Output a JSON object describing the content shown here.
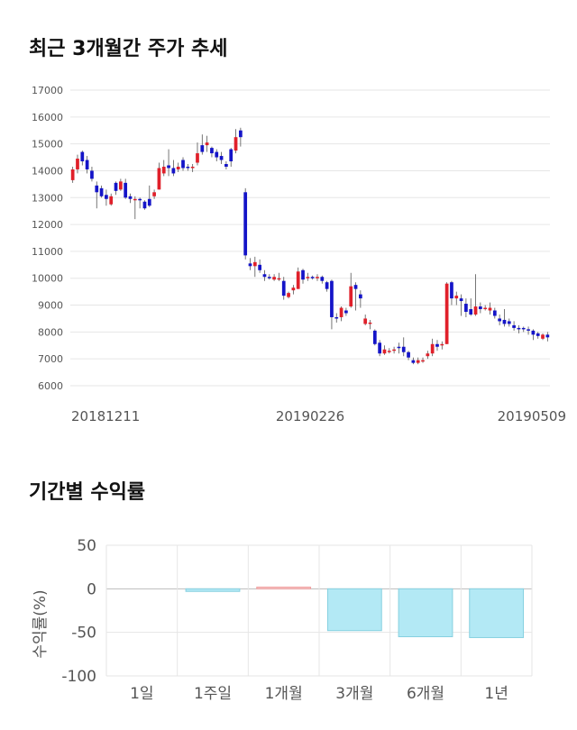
{
  "sections": {
    "price_title": "최근 3개월간 주가 추세",
    "returns_title": "기간별 수익률"
  },
  "colors": {
    "up": "#e0202a",
    "down": "#1414c8",
    "grid": "#e6e6e6",
    "bar_fill": "#b3e9f5",
    "bar_stroke": "#86d0e0",
    "bar_pos_fill": "#f7c6c6"
  },
  "chart_data": [
    {
      "type": "candlestick",
      "title": "최근 3개월간 주가 추세",
      "ylim": [
        6000,
        17000
      ],
      "yticks": [
        "6000",
        "7000",
        "8000",
        "9000",
        "10000",
        "11000",
        "12000",
        "13000",
        "14000",
        "15000",
        "16000",
        "17000"
      ],
      "xlabels": [
        "20181211",
        "20190226",
        "20190509"
      ],
      "candles": [
        [
          13650,
          14050,
          14150,
          13550
        ],
        [
          14050,
          14450,
          14600,
          13900
        ],
        [
          14700,
          14350,
          14750,
          14200
        ],
        [
          14400,
          14050,
          14550,
          13900
        ],
        [
          14000,
          13700,
          14150,
          13600
        ],
        [
          13450,
          13200,
          13600,
          12600
        ],
        [
          13350,
          13050,
          13450,
          13000
        ],
        [
          13100,
          12950,
          13300,
          12700
        ],
        [
          12750,
          13050,
          13150,
          12700
        ],
        [
          13550,
          13250,
          13600,
          13100
        ],
        [
          13300,
          13600,
          13700,
          13250
        ],
        [
          13550,
          13000,
          13700,
          12950
        ],
        [
          13050,
          12950,
          13150,
          12800
        ],
        [
          12900,
          12950,
          13050,
          12200
        ],
        [
          12950,
          12900,
          13000,
          12600
        ],
        [
          12850,
          12600,
          12900,
          12550
        ],
        [
          12950,
          12700,
          13450,
          12650
        ],
        [
          13050,
          13200,
          13300,
          12950
        ],
        [
          13300,
          14100,
          14300,
          13300
        ],
        [
          13900,
          14150,
          14400,
          13800
        ],
        [
          14200,
          14100,
          14800,
          13800
        ],
        [
          14100,
          13900,
          14400,
          13800
        ],
        [
          14050,
          14150,
          14300,
          13950
        ],
        [
          14400,
          14100,
          14500,
          14000
        ],
        [
          14150,
          14100,
          14250,
          14000
        ],
        [
          14100,
          14150,
          14250,
          13950
        ],
        [
          14300,
          14650,
          15050,
          14200
        ],
        [
          14950,
          14700,
          15350,
          14600
        ],
        [
          14950,
          15050,
          15300,
          14700
        ],
        [
          14850,
          14650,
          14900,
          14500
        ],
        [
          14700,
          14500,
          14800,
          14350
        ],
        [
          14550,
          14400,
          14700,
          14250
        ],
        [
          14250,
          14150,
          14350,
          14050
        ],
        [
          14800,
          14350,
          14850,
          14150
        ],
        [
          14750,
          15250,
          15550,
          14650
        ],
        [
          15500,
          15250,
          15600,
          14900
        ],
        [
          13200,
          10850,
          13350,
          10700
        ],
        [
          10550,
          10450,
          10750,
          10300
        ],
        [
          10450,
          10600,
          10800,
          10050
        ],
        [
          10500,
          10300,
          10700,
          10200
        ],
        [
          10150,
          10050,
          10300,
          9900
        ],
        [
          10050,
          10000,
          10150,
          9950
        ],
        [
          9950,
          10050,
          10150,
          9900
        ],
        [
          10000,
          10000,
          10200,
          9900
        ],
        [
          9900,
          9350,
          10050,
          9200
        ],
        [
          9300,
          9450,
          9500,
          9250
        ],
        [
          9550,
          9650,
          9750,
          9400
        ],
        [
          9600,
          10250,
          10400,
          9600
        ],
        [
          10300,
          9950,
          10350,
          9800
        ],
        [
          10000,
          10050,
          10200,
          9900
        ],
        [
          10050,
          10000,
          10100,
          9950
        ],
        [
          10000,
          10050,
          10150,
          9900
        ],
        [
          10050,
          9900,
          10100,
          9800
        ],
        [
          9850,
          9600,
          9900,
          9500
        ],
        [
          9900,
          8550,
          9950,
          8100
        ],
        [
          8550,
          8500,
          8700,
          8350
        ],
        [
          8550,
          8900,
          8950,
          8400
        ],
        [
          8800,
          8700,
          8900,
          8600
        ],
        [
          8950,
          9700,
          10200,
          8900
        ],
        [
          9750,
          9600,
          9850,
          8800
        ],
        [
          9400,
          9250,
          9550,
          8900
        ],
        [
          8300,
          8500,
          8650,
          8250
        ],
        [
          8300,
          8350,
          8450,
          8100
        ],
        [
          8050,
          7550,
          8100,
          7500
        ],
        [
          7600,
          7200,
          7700,
          7100
        ],
        [
          7200,
          7350,
          7500,
          7150
        ],
        [
          7300,
          7300,
          7400,
          7200
        ],
        [
          7300,
          7350,
          7450,
          7200
        ],
        [
          7450,
          7400,
          7600,
          7200
        ],
        [
          7450,
          7250,
          7800,
          7100
        ],
        [
          7250,
          7050,
          7300,
          6950
        ],
        [
          6950,
          6850,
          7050,
          6800
        ],
        [
          6850,
          6950,
          7050,
          6800
        ],
        [
          6950,
          6950,
          7050,
          6850
        ],
        [
          7100,
          7200,
          7300,
          7000
        ],
        [
          7200,
          7550,
          7750,
          7100
        ],
        [
          7550,
          7450,
          7700,
          7300
        ],
        [
          7500,
          7550,
          7650,
          7350
        ],
        [
          7550,
          9800,
          9850,
          7550
        ],
        [
          9850,
          9250,
          9900,
          9000
        ],
        [
          9250,
          9350,
          9500,
          9000
        ],
        [
          9250,
          9150,
          9400,
          8600
        ],
        [
          9050,
          8750,
          9250,
          8550
        ],
        [
          8850,
          8650,
          9250,
          8600
        ],
        [
          8650,
          8950,
          10150,
          8600
        ],
        [
          8950,
          8850,
          9100,
          8700
        ],
        [
          8850,
          8900,
          9000,
          8800
        ],
        [
          8800,
          8900,
          9100,
          8650
        ],
        [
          8800,
          8600,
          8900,
          8500
        ],
        [
          8500,
          8400,
          8650,
          8250
        ],
        [
          8450,
          8300,
          8850,
          8200
        ],
        [
          8400,
          8300,
          8500,
          8200
        ],
        [
          8250,
          8150,
          8400,
          8050
        ],
        [
          8150,
          8100,
          8250,
          7950
        ],
        [
          8150,
          8100,
          8200,
          8000
        ],
        [
          8100,
          8050,
          8200,
          7900
        ],
        [
          8050,
          7900,
          8100,
          7700
        ],
        [
          7950,
          7850,
          8000,
          7750
        ],
        [
          7750,
          7900,
          7950,
          7700
        ],
        [
          7900,
          7800,
          8000,
          7650
        ]
      ]
    },
    {
      "type": "bar",
      "title": "기간별 수익률",
      "ylabel": "수익률(%)",
      "ylim": [
        -100,
        50
      ],
      "yticks": [
        "50",
        "0",
        "-50",
        "-100"
      ],
      "categories": [
        "1일",
        "1주일",
        "1개월",
        "3개월",
        "6개월",
        "1년"
      ],
      "values": [
        0,
        -3,
        2,
        -48,
        -55,
        -56
      ]
    }
  ]
}
